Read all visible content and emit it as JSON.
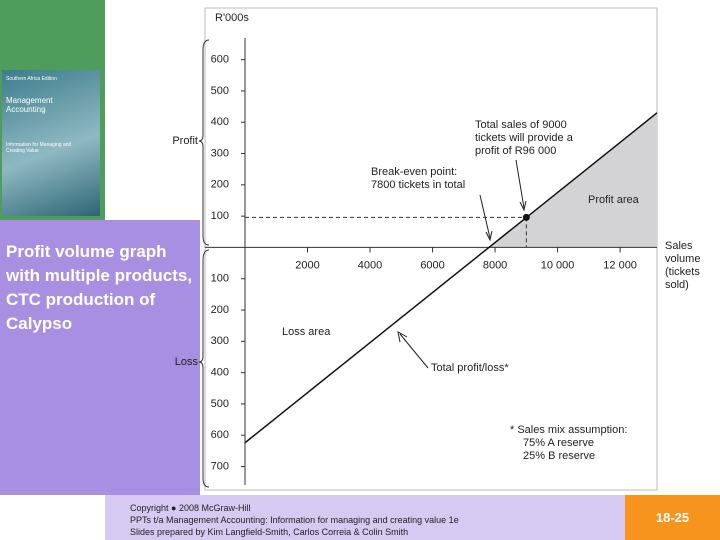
{
  "cover": {
    "edition": "Southern Africa Edition",
    "title": "Management Accounting",
    "subtitle": "Information for Managing and Creating Value"
  },
  "slide_title": "Profit volume graph with multiple products, CTC production of Calypso",
  "chart_data": {
    "type": "line",
    "y_label": "R'000s",
    "x_label": "Sales volume (tickets sold)",
    "profit_label": "Profit",
    "loss_label": "Loss",
    "x": [
      0,
      13180
    ],
    "series": [
      {
        "color": "#111111",
        "values": [
          -624,
          430
        ]
      }
    ],
    "highlight": {
      "x": 9000,
      "y": 96
    },
    "xlim": [
      0,
      13180
    ],
    "xticks": [
      2000,
      4000,
      6000,
      8000,
      {
        "value": 10000,
        "label": "10 000"
      },
      {
        "value": 12000,
        "label": "12 000"
      }
    ],
    "ylim": [
      -775,
      765
    ],
    "yticks": [
      600,
      500,
      400,
      300,
      200,
      100,
      {
        "value": -100,
        "label": "100"
      },
      {
        "value": -200,
        "label": "200"
      },
      {
        "value": -300,
        "label": "300"
      },
      {
        "value": -400,
        "label": "400"
      },
      {
        "value": -500,
        "label": "500"
      },
      {
        "value": -600,
        "label": "600"
      },
      {
        "value": -700,
        "label": "700"
      }
    ],
    "annotations": {
      "total_sales": "Total sales of 9000 tickets will provide a profit of R96 000",
      "break_even": "Break-even point: 7800 tickets in total",
      "profit_area": "Profit area",
      "loss_area": "Loss area",
      "total_profit_loss": "Total profit/loss*",
      "sales_mix": "*  Sales mix assumption:",
      "mix_a": "75% A reserve",
      "mix_b": "25% B reserve"
    }
  },
  "footer": {
    "copyright": "Copyright ● 2008 McGraw-Hill",
    "ppt": "PPTs t/a Management Accounting: Information for managing and creating value 1e",
    "credits": "Slides prepared by Kim Langfield-Smith, Carlos Correia & Colin Smith",
    "page": "18-25"
  }
}
